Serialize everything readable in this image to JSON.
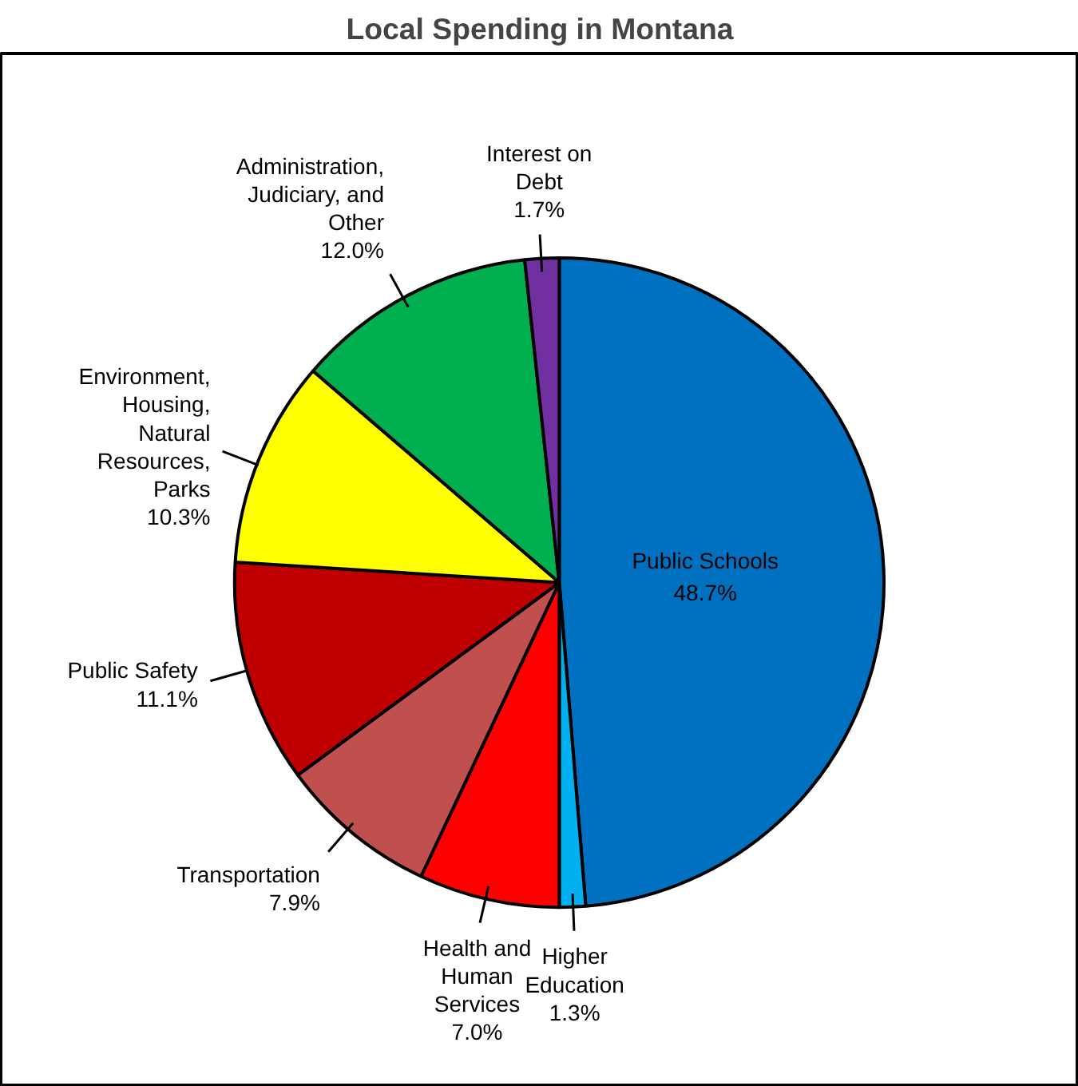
{
  "chart_data": {
    "type": "pie",
    "title": "Local Spending in Montana",
    "categories": [
      "Public Schools",
      "Higher\nEducation",
      "Health and\nHuman\nServices",
      "Transportation",
      "Public Safety",
      "Environment,\nHousing,\nNatural\nResources,\nParks",
      "Administration,\nJudiciary, and\nOther",
      "Interest on\nDebt"
    ],
    "values": [
      48.7,
      1.3,
      7.0,
      7.9,
      11.1,
      10.3,
      12.0,
      1.7
    ],
    "colors": [
      "#0070c0",
      "#00b0f0",
      "#ff0000",
      "#c0504d",
      "#c00000",
      "#ffff00",
      "#00b050",
      "#7030a0"
    ],
    "value_labels": [
      "48.7%",
      "1.3%",
      "7.0%",
      "7.9%",
      "11.1%",
      "10.3%",
      "12.0%",
      "1.7%"
    ]
  }
}
